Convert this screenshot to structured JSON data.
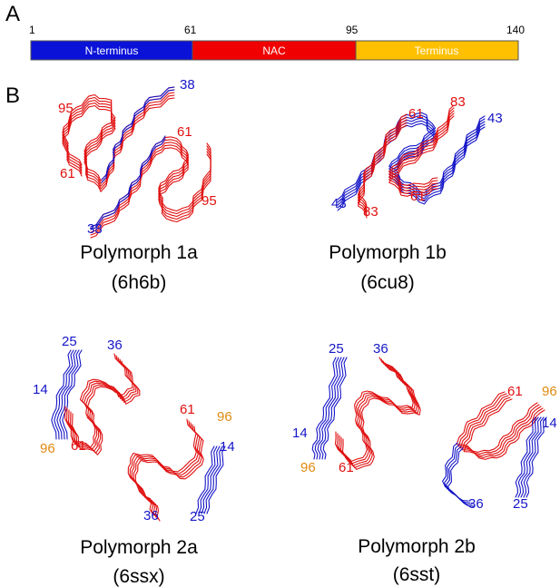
{
  "panel_a": {
    "letter": "A",
    "ticks": [
      "1",
      "61",
      "95",
      "140"
    ],
    "segments": [
      {
        "label": "N-terminus",
        "start": 1,
        "end": 61,
        "color": "#0a12d8"
      },
      {
        "label": "NAC",
        "start": 61,
        "end": 95,
        "color": "#f00000"
      },
      {
        "label": "Terminus",
        "start": 95,
        "end": 140,
        "color": "#ffc000"
      }
    ],
    "total": 140
  },
  "panel_b": {
    "letter": "B",
    "colors": {
      "n_term": "#1515c8",
      "nac": "#e01010",
      "c_term": "#e08a10"
    },
    "polymorphs": [
      {
        "name": "Polymorph 1a",
        "pdb": "(6h6b)",
        "labels": {
          "top_right": "38",
          "upper_left": "95",
          "upper_mid": "61",
          "mid_left": "61",
          "lower_right": "95",
          "bottom_left": "38"
        }
      },
      {
        "name": "Polymorph 1b",
        "pdb": "(6cu8)",
        "labels": {
          "top_a": "61",
          "top_b": "83",
          "right": "43",
          "left": "43",
          "bottom_a": "83",
          "bottom_b": "61"
        }
      },
      {
        "name": "Polymorph 2a",
        "pdb": "(6ssx)",
        "labels": {
          "a_top1": "25",
          "a_top2": "36",
          "a_left": "14",
          "a_bot1": "96",
          "a_bot2": "61",
          "b_top1": "61",
          "b_top2": "96",
          "b_right": "14",
          "b_bot1": "36",
          "b_bot2": "25"
        }
      },
      {
        "name": "Polymorph 2b",
        "pdb": "(6sst)",
        "labels": {
          "a_top1": "25",
          "a_top2": "36",
          "a_left": "14",
          "a_bot1": "96",
          "a_bot2": "61",
          "b_top1": "61",
          "b_top2": "96",
          "b_right": "14",
          "b_bot1": "36",
          "b_bot2": "25"
        }
      }
    ]
  }
}
